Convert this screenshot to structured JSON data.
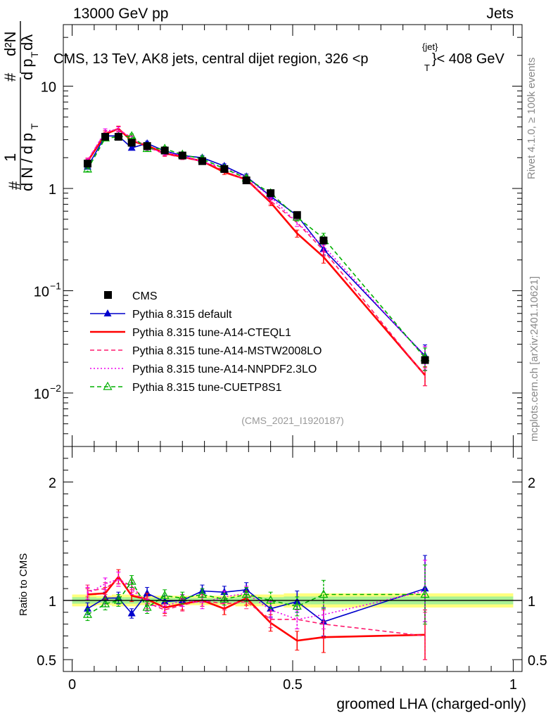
{
  "header": {
    "left": "13000 GeV pp",
    "right": "Jets"
  },
  "title": "CMS, 13 TeV, AK8 jets, central dijet region, 326 <",
  "title_pt": "p",
  "title_pt_sup": "{jet}",
  "title_pt_sub": "T",
  "title_tail": "}< 408 GeV",
  "side_labels": {
    "rivet": "Rivet 4.1.0, ≥ 100k events",
    "mcplots": "mcplots.cern.ch [arXiv:2401.10621]"
  },
  "watermark": "(CMS_2021_I1920187)",
  "ylabel_main": "#  1/(dN/dp_T)  # d²N/(dp_T dλ)",
  "ylabel_ratio": "Ratio to CMS",
  "xlabel": "groomed LHA (charged-only)",
  "main_ticks": [
    {
      "value": 0.01,
      "label": "10",
      "exp": "−2"
    },
    {
      "value": 0.1,
      "label": "10",
      "exp": "−1"
    },
    {
      "value": 1,
      "label": "1",
      "exp": ""
    },
    {
      "value": 10,
      "label": "10",
      "exp": ""
    }
  ],
  "ratio_ticks": [
    {
      "value": 0.5,
      "label": "0.5"
    },
    {
      "value": 1,
      "label": "1"
    },
    {
      "value": 2,
      "label": "2"
    }
  ],
  "x_ticks": [
    {
      "value": 0,
      "label": "0"
    },
    {
      "value": 0.5,
      "label": "0.5"
    },
    {
      "value": 1,
      "label": "1"
    }
  ],
  "chart_data": {
    "type": "line",
    "x_range": [
      -0.02,
      1.02
    ],
    "y_range_main": [
      0.003,
      40
    ],
    "y_scale_main": "log",
    "y_range_ratio": [
      0.4,
      2.3
    ],
    "legend_position": "middle-left",
    "x": [
      0.035,
      0.075,
      0.105,
      0.135,
      0.17,
      0.21,
      0.25,
      0.295,
      0.345,
      0.395,
      0.45,
      0.51,
      0.57,
      0.8
    ],
    "data": {
      "name": "CMS",
      "values": [
        1.75,
        3.2,
        3.2,
        2.8,
        2.6,
        2.35,
        2.1,
        1.85,
        1.55,
        1.2,
        0.9,
        0.55,
        0.31,
        0.021
      ],
      "band_half_width": [
        0.05,
        0.04,
        0.05,
        0.05,
        0.04,
        0.04,
        0.04,
        0.04,
        0.04,
        0.05,
        0.05,
        0.06,
        0.06,
        0.06
      ]
    },
    "series": [
      {
        "name": "Pythia 8.315 default",
        "color": "#0000cc",
        "dash": "",
        "marker": "filled-triangle",
        "ratio": [
          0.93,
          1.02,
          1.02,
          0.89,
          1.06,
          0.99,
          1.0,
          1.08,
          1.07,
          1.09,
          0.93,
          0.99,
          0.82,
          1.1
        ],
        "ratio_err": [
          0.05,
          0.05,
          0.05,
          0.04,
          0.05,
          0.05,
          0.05,
          0.05,
          0.05,
          0.06,
          0.07,
          0.09,
          0.12,
          0.28
        ]
      },
      {
        "name": "Pythia 8.315 tune-A14-CTEQL1",
        "color": "#ff0000",
        "dash": "",
        "marker": "none",
        "ratio": [
          1.05,
          1.06,
          1.2,
          1.04,
          1.01,
          0.94,
          0.97,
          1.0,
          0.93,
          1.02,
          0.81,
          0.66,
          0.69,
          0.71
        ],
        "ratio_err": [
          0.05,
          0.05,
          0.06,
          0.05,
          0.05,
          0.05,
          0.05,
          0.05,
          0.05,
          0.06,
          0.07,
          0.08,
          0.13,
          0.21
        ]
      },
      {
        "name": "Pythia 8.315 tune-A14-MSTW2008LO",
        "color": "#ff1a6e",
        "dash": "6,4",
        "marker": "none",
        "ratio": [
          1.08,
          1.1,
          1.18,
          1.12,
          0.98,
          0.92,
          0.96,
          1.0,
          0.97,
          0.99,
          0.84,
          0.84,
          0.8,
          0.7
        ],
        "ratio_err": [
          0.05,
          0.05,
          0.06,
          0.05,
          0.05,
          0.05,
          0.05,
          0.05,
          0.05,
          0.06,
          0.07,
          0.08,
          0.12,
          0.2
        ]
      },
      {
        "name": "Pythia 8.315 tune-A14-NNPDF2.3LO",
        "color": "#ee00ee",
        "dash": "2,3",
        "marker": "none",
        "ratio": [
          1.06,
          1.14,
          1.18,
          1.1,
          0.96,
          0.95,
          1.0,
          0.98,
          1.03,
          1.06,
          0.92,
          0.84,
          0.88,
          1.08
        ],
        "ratio_err": [
          0.05,
          0.05,
          0.06,
          0.05,
          0.05,
          0.05,
          0.05,
          0.05,
          0.05,
          0.06,
          0.07,
          0.08,
          0.12,
          0.26
        ]
      },
      {
        "name": "Pythia 8.315 tune-CUETP8S1",
        "color": "#00b000",
        "dash": "6,4",
        "marker": "open-triangle",
        "ratio": [
          0.88,
          0.97,
          1.0,
          1.16,
          0.94,
          1.04,
          1.02,
          1.05,
          1.01,
          1.05,
          1.0,
          0.95,
          1.05,
          1.05
        ],
        "ratio_err": [
          0.05,
          0.05,
          0.05,
          0.05,
          0.05,
          0.05,
          0.05,
          0.05,
          0.05,
          0.06,
          0.07,
          0.08,
          0.12,
          0.25
        ]
      }
    ]
  }
}
